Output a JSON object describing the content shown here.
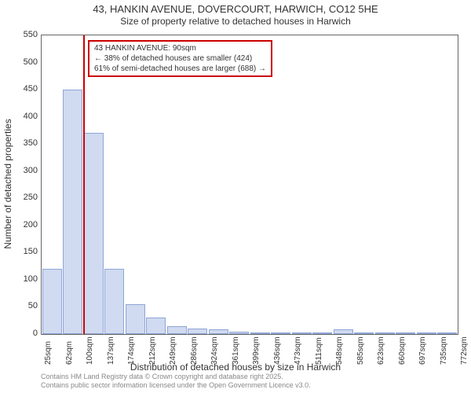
{
  "chart": {
    "type": "histogram",
    "title_main": "43, HANKIN AVENUE, DOVERCOURT, HARWICH, CO12 5HE",
    "title_sub": "Size of property relative to detached houses in Harwich",
    "ylabel": "Number of detached properties",
    "xlabel": "Distribution of detached houses by size in Harwich",
    "ylim": [
      0,
      550
    ],
    "yticks": [
      0,
      50,
      100,
      150,
      200,
      250,
      300,
      350,
      400,
      450,
      500,
      550
    ],
    "xticks": [
      "25sqm",
      "62sqm",
      "100sqm",
      "137sqm",
      "174sqm",
      "212sqm",
      "249sqm",
      "286sqm",
      "324sqm",
      "361sqm",
      "399sqm",
      "436sqm",
      "473sqm",
      "511sqm",
      "548sqm",
      "585sqm",
      "623sqm",
      "660sqm",
      "697sqm",
      "735sqm",
      "772sqm"
    ],
    "bars": [
      120,
      450,
      370,
      120,
      55,
      30,
      15,
      10,
      8,
      5,
      3,
      2,
      3,
      2,
      8,
      2,
      1,
      1,
      0,
      1
    ],
    "marker_index": 2,
    "annotation": {
      "line1": "43 HANKIN AVENUE: 90sqm",
      "line2": "← 38% of detached houses are smaller (424)",
      "line3": "61% of semi-detached houses are larger (688) →"
    },
    "bar_fill": "#d0daf0",
    "bar_border": "#8fa5d6",
    "grid_color": "#d0d0d0",
    "marker_color": "#cc0000",
    "background_color": "#ffffff",
    "title_fontsize": 13,
    "label_fontsize": 12,
    "tick_fontsize": 11
  },
  "footer": {
    "line1": "Contains HM Land Registry data © Crown copyright and database right 2025.",
    "line2": "Contains public sector information licensed under the Open Government Licence v3.0."
  }
}
